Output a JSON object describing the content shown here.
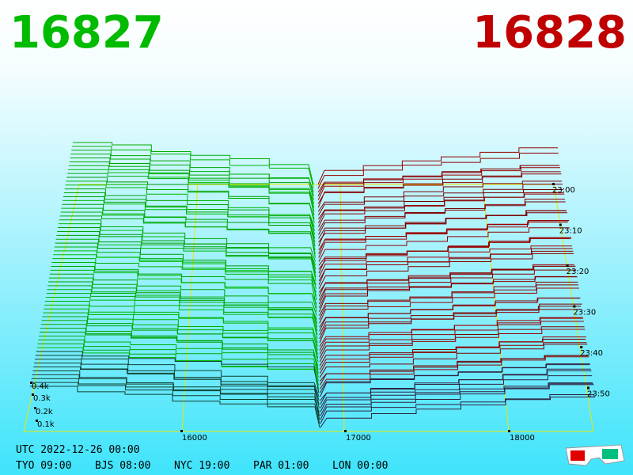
{
  "header": {
    "bid": "16827",
    "ask": "16828"
  },
  "depth_labels": [
    "0.4k",
    "0.3k",
    "0.2k",
    "0.1k"
  ],
  "price_labels": [
    "16000",
    "17000",
    "18000"
  ],
  "time_labels": [
    "23:00",
    "23:10",
    "23:20",
    "23:30",
    "23:40",
    "23:50"
  ],
  "footer": {
    "utc": "UTC 2022-12-26 00:00",
    "zones": [
      "TYO 09:00",
      "BJS 08:00",
      "NYC 19:00",
      "PAR 01:00",
      "LON 00:00"
    ]
  }
}
